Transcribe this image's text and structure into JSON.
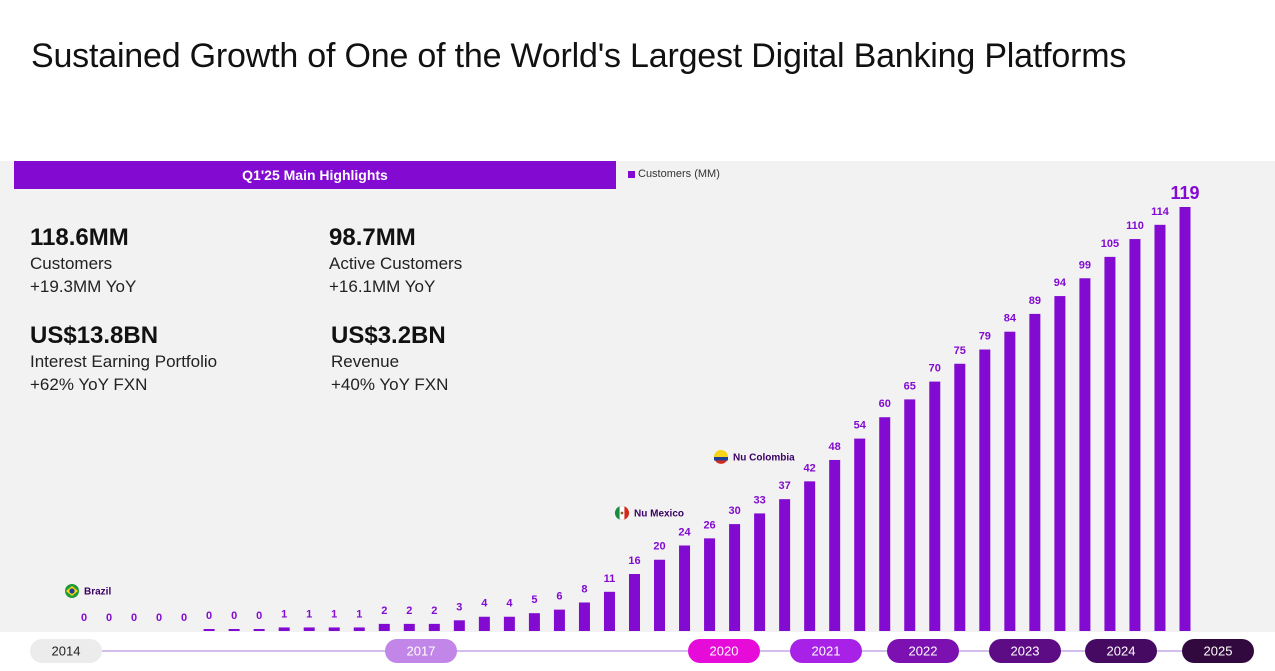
{
  "page": {
    "title": "Sustained Growth of One of the World's Largest Digital Banking Platforms"
  },
  "highlights": {
    "header": "Q1'25 Main Highlights",
    "metrics": [
      {
        "value": "118.6MM",
        "label": "Customers",
        "delta": "+19.3MM YoY"
      },
      {
        "value": "98.7MM",
        "label": "Active Customers",
        "delta": "+16.1MM YoY"
      },
      {
        "value": "US$13.8BN",
        "label": "Interest Earning Portfolio",
        "delta": "+62% YoY FXN"
      },
      {
        "value": "US$3.2BN",
        "label": "Revenue",
        "delta": "+40% YoY FXN"
      }
    ]
  },
  "colors": {
    "bar": "#820ad1",
    "bar_label": "#820ad1",
    "timeline_line": "#a67cd6",
    "pills": [
      "#ececec",
      "#c285e8",
      "#e60bd9",
      "#a722e6",
      "#7d10b0",
      "#5e0c86",
      "#470a63",
      "#32093f"
    ],
    "pill_text": [
      "#222222",
      "#ffffff",
      "#ffffff",
      "#ffffff",
      "#ffffff",
      "#ffffff",
      "#ffffff",
      "#ffffff"
    ]
  },
  "chart_data": {
    "type": "bar",
    "title": "",
    "legend": "Customers (MM)",
    "legend_position": "top",
    "xlabel": "",
    "ylabel": "",
    "ylim": [
      0,
      120
    ],
    "grid": false,
    "series": [
      {
        "name": "Customers (MM)",
        "values": [
          0,
          0,
          0,
          0,
          0,
          0,
          0,
          0,
          1,
          1,
          1,
          1,
          2,
          2,
          2,
          3,
          4,
          4,
          5,
          6,
          8,
          11,
          16,
          20,
          24,
          26,
          30,
          33,
          37,
          42,
          48,
          54,
          60,
          65,
          70,
          75,
          79,
          84,
          89,
          94,
          99,
          105,
          110,
          114,
          119
        ]
      }
    ],
    "x_period_labels": [
      "2014",
      "2017",
      "2020",
      "2021",
      "2022",
      "2023",
      "2024",
      "2025"
    ],
    "x_period_start_index": [
      0,
      9,
      26,
      30,
      34,
      38,
      42,
      44
    ],
    "annotations": [
      {
        "text": "Brazil",
        "at_index": 0,
        "flag": "brazil"
      },
      {
        "text": "Nu Mexico",
        "at_index": 21,
        "flag": "mexico"
      },
      {
        "text": "Nu Colombia",
        "at_index": 25,
        "flag": "colombia"
      }
    ]
  }
}
